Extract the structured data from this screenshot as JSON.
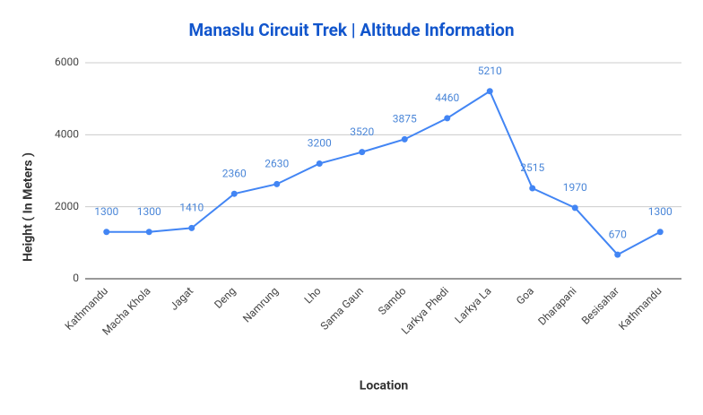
{
  "chart_data": {
    "type": "line",
    "title": "Manaslu Circuit Trek | Altitude Information",
    "x_label": "Location",
    "y_label": "Height ( In Meters )",
    "categories": [
      "Kathmandu",
      "Macha Khola",
      "Jagat",
      "Deng",
      "Namrung",
      "Lho",
      "Sama Gaun",
      "Samdo",
      "Larkya Phedi",
      "Larkya La",
      "Goa",
      "Dharapani",
      "Besisahar",
      "Kathmandu"
    ],
    "series": [
      {
        "name": "Height",
        "color": "#4285f4",
        "values": [
          1300,
          1300,
          1410,
          2360,
          2630,
          3200,
          3520,
          3875,
          4460,
          5210,
          2515,
          1970,
          670,
          1300
        ]
      }
    ],
    "ylim": [
      0,
      6000
    ],
    "yticks": [
      0,
      2000,
      4000,
      6000
    ],
    "grid": true
  }
}
